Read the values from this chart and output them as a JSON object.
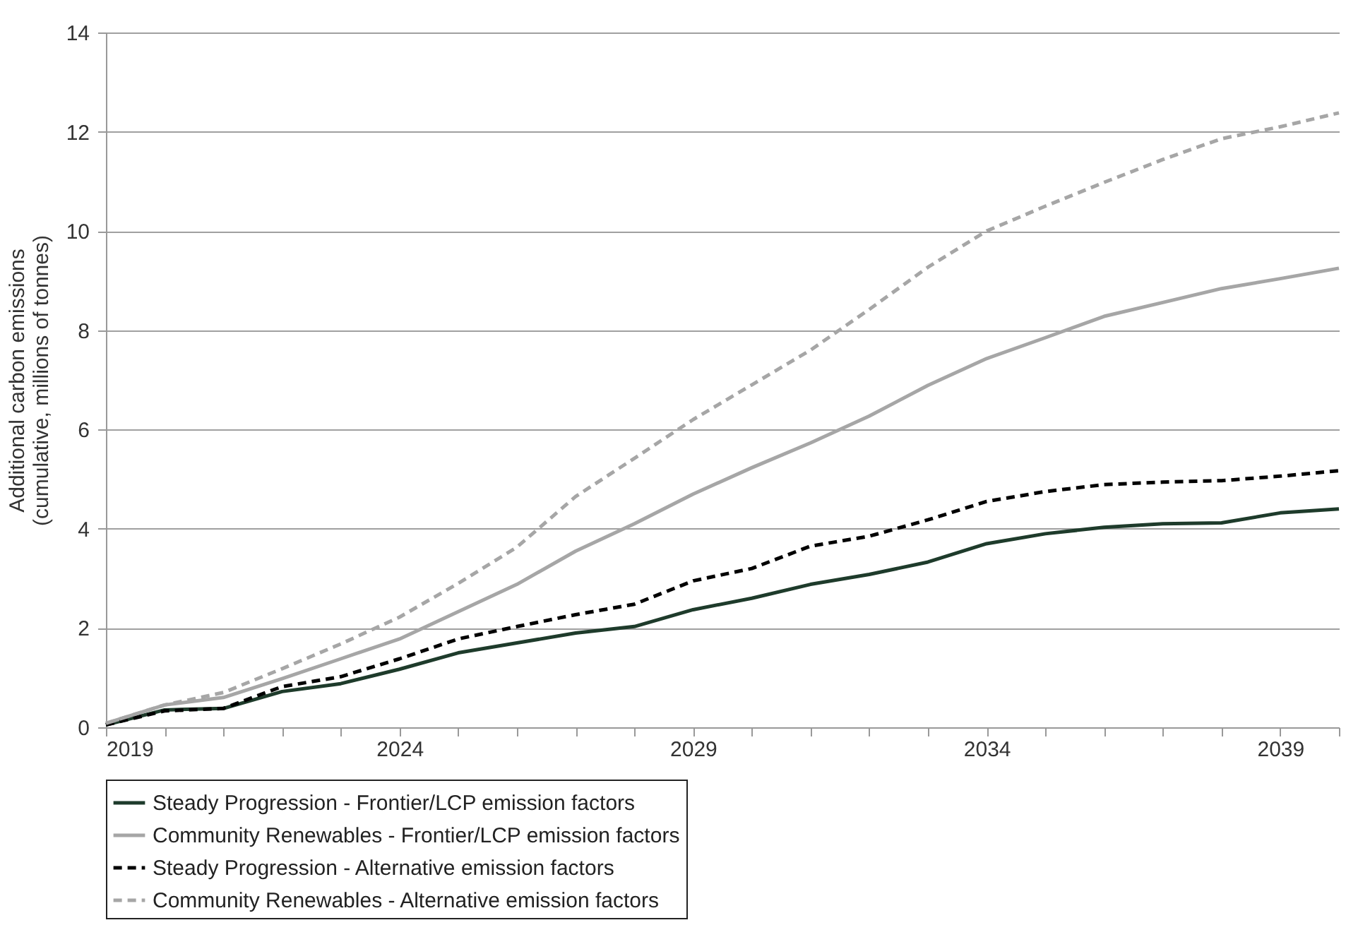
{
  "chart_data": {
    "type": "line",
    "ylabel": "Additional carbon emissions\n(cumulative, millions of tonnes)",
    "x": [
      2019,
      2020,
      2021,
      2022,
      2023,
      2024,
      2025,
      2026,
      2027,
      2028,
      2029,
      2030,
      2031,
      2032,
      2033,
      2034,
      2035,
      2036,
      2037,
      2038,
      2039,
      2040
    ],
    "xlim": [
      2019,
      2040
    ],
    "xticks": [
      2019,
      {
        "value": 2020,
        "label": null
      },
      {
        "value": 2021,
        "label": null
      },
      {
        "value": 2022,
        "label": null
      },
      {
        "value": 2023,
        "label": null
      },
      2024,
      {
        "value": 2025,
        "label": null
      },
      {
        "value": 2026,
        "label": null
      },
      {
        "value": 2027,
        "label": null
      },
      {
        "value": 2028,
        "label": null
      },
      2029,
      {
        "value": 2030,
        "label": null
      },
      {
        "value": 2031,
        "label": null
      },
      {
        "value": 2032,
        "label": null
      },
      {
        "value": 2033,
        "label": null
      },
      2034,
      {
        "value": 2035,
        "label": null
      },
      {
        "value": 2036,
        "label": null
      },
      {
        "value": 2037,
        "label": null
      },
      {
        "value": 2038,
        "label": null
      },
      2039,
      {
        "value": 2040,
        "label": null
      }
    ],
    "ylim": [
      0,
      14
    ],
    "yticks": [
      0,
      2,
      4,
      6,
      8,
      10,
      12,
      14
    ],
    "grid": "y",
    "legend": "bottom",
    "marker": "none",
    "series": [
      {
        "name": "Steady Progression - Frontier/LCP emission factors",
        "color": "#1e3b2b",
        "line_style": "solid",
        "values": [
          0.05,
          0.35,
          0.38,
          0.72,
          0.88,
          1.17,
          1.5,
          1.7,
          1.9,
          2.03,
          2.37,
          2.6,
          2.88,
          3.08,
          3.33,
          3.7,
          3.9,
          4.03,
          4.1,
          4.12,
          4.32,
          4.4
        ]
      },
      {
        "name": "Community Renewables - Frontier/LCP emission factors",
        "color": "#a6a6a6",
        "line_style": "solid",
        "values": [
          0.08,
          0.45,
          0.6,
          0.98,
          1.38,
          1.78,
          2.33,
          2.88,
          3.55,
          4.1,
          4.7,
          5.23,
          5.73,
          6.27,
          6.89,
          7.43,
          7.85,
          8.28,
          8.56,
          8.84,
          9.04,
          9.25
        ]
      },
      {
        "name": "Steady Progression - Alternative emission factors",
        "color": "#000000",
        "line_style": "dashed",
        "values": [
          0.05,
          0.33,
          0.38,
          0.82,
          1.02,
          1.38,
          1.78,
          2.03,
          2.27,
          2.48,
          2.95,
          3.2,
          3.65,
          3.85,
          4.18,
          4.55,
          4.75,
          4.89,
          4.94,
          4.97,
          5.06,
          5.17
        ]
      },
      {
        "name": "Community Renewables - Alternative emission factors",
        "color": "#a6a6a6",
        "line_style": "dashed",
        "values": [
          0.08,
          0.45,
          0.7,
          1.18,
          1.68,
          2.22,
          2.9,
          3.63,
          4.65,
          5.42,
          6.2,
          6.9,
          7.6,
          8.42,
          9.27,
          10.0,
          10.5,
          10.98,
          11.44,
          11.86,
          12.1,
          12.38
        ]
      }
    ]
  }
}
